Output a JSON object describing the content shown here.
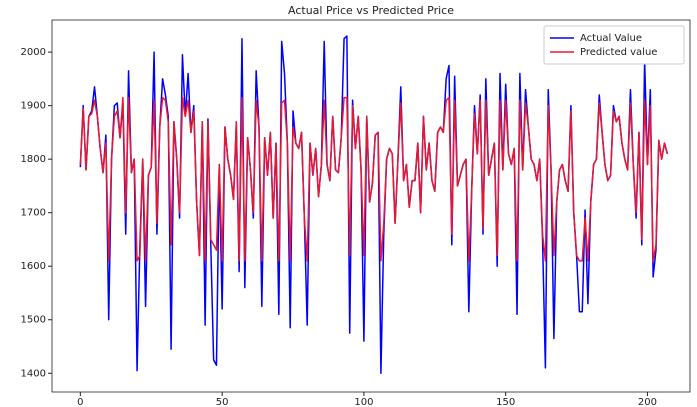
{
  "chart_data": {
    "type": "line",
    "title": "Actual Price vs Predicted Price",
    "x": [
      0,
      1,
      2,
      3,
      4,
      5,
      6,
      7,
      8,
      9,
      10,
      11,
      12,
      13,
      14,
      15,
      16,
      17,
      18,
      19,
      20,
      21,
      22,
      23,
      24,
      25,
      26,
      27,
      28,
      29,
      30,
      31,
      32,
      33,
      34,
      35,
      36,
      37,
      38,
      39,
      40,
      41,
      42,
      43,
      44,
      45,
      46,
      47,
      48,
      49,
      50,
      51,
      52,
      53,
      54,
      55,
      56,
      57,
      58,
      59,
      60,
      61,
      62,
      63,
      64,
      65,
      66,
      67,
      68,
      69,
      70,
      71,
      72,
      73,
      74,
      75,
      76,
      77,
      78,
      79,
      80,
      81,
      82,
      83,
      84,
      85,
      86,
      87,
      88,
      89,
      90,
      91,
      92,
      93,
      94,
      95,
      96,
      97,
      98,
      99,
      100,
      101,
      102,
      103,
      104,
      105,
      106,
      107,
      108,
      109,
      110,
      111,
      112,
      113,
      114,
      115,
      116,
      117,
      118,
      119,
      120,
      121,
      122,
      123,
      124,
      125,
      126,
      127,
      128,
      129,
      130,
      131,
      132,
      133,
      134,
      135,
      136,
      137,
      138,
      139,
      140,
      141,
      142,
      143,
      144,
      145,
      146,
      147,
      148,
      149,
      150,
      151,
      152,
      153,
      154,
      155,
      156,
      157,
      158,
      159,
      160,
      161,
      162,
      163,
      164,
      165,
      166,
      167,
      168,
      169,
      170,
      171,
      172,
      173,
      174,
      175,
      176,
      177,
      178,
      179,
      180,
      181,
      182,
      183,
      184,
      185,
      186,
      187,
      188,
      189,
      190,
      191,
      192,
      193,
      194,
      195,
      196,
      197,
      198,
      199,
      200,
      201,
      202,
      203,
      204,
      205,
      206,
      207
    ],
    "series": [
      {
        "name": "Actual Value",
        "color": "#0000ff",
        "values": [
          1785,
          1900,
          1780,
          1880,
          1890,
          1935,
          1880,
          1820,
          1775,
          1845,
          1500,
          1800,
          1900,
          1905,
          1840,
          1905,
          1660,
          1965,
          1775,
          1800,
          1405,
          1640,
          1800,
          1525,
          1770,
          1785,
          2000,
          1660,
          1860,
          1950,
          1920,
          1880,
          1445,
          1870,
          1800,
          1690,
          1995,
          1880,
          1960,
          1850,
          1900,
          1720,
          1620,
          1870,
          1490,
          1875,
          1640,
          1425,
          1415,
          1790,
          1520,
          1860,
          1800,
          1770,
          1725,
          1865,
          1590,
          2025,
          1560,
          1840,
          1780,
          1690,
          1965,
          1860,
          1525,
          1840,
          1770,
          1850,
          1690,
          1830,
          1510,
          2020,
          1960,
          1830,
          1485,
          1890,
          1830,
          1820,
          1850,
          1690,
          1490,
          1830,
          1770,
          1820,
          1730,
          1790,
          2020,
          1790,
          1760,
          1880,
          1780,
          1775,
          1840,
          2025,
          2030,
          1475,
          1910,
          1820,
          1880,
          1780,
          1460,
          1880,
          1720,
          1755,
          1845,
          1850,
          1400,
          1660,
          1800,
          1820,
          1810,
          1680,
          1800,
          1935,
          1760,
          1790,
          1710,
          1760,
          1760,
          1830,
          1700,
          1880,
          1780,
          1830,
          1760,
          1740,
          1850,
          1860,
          1850,
          1950,
          1975,
          1640,
          1955,
          1750,
          1770,
          1790,
          1800,
          1515,
          1740,
          1900,
          1810,
          1920,
          1660,
          1950,
          1770,
          1800,
          1830,
          1600,
          1960,
          1780,
          1940,
          1810,
          1790,
          1820,
          1510,
          1960,
          1780,
          1930,
          1860,
          1800,
          1790,
          1760,
          1800,
          1650,
          1410,
          1930,
          1780,
          1465,
          1720,
          1780,
          1790,
          1760,
          1740,
          1900,
          1700,
          1620,
          1515,
          1515,
          1705,
          1530,
          1720,
          1790,
          1800,
          1920,
          1850,
          1790,
          1760,
          1770,
          1900,
          1870,
          1880,
          1830,
          1800,
          1780,
          1930,
          1790,
          1690,
          1850,
          1640,
          1985,
          1790,
          1930,
          1580,
          1630,
          1835,
          1800,
          1830,
          1810
        ]
      },
      {
        "name": "Predicted value",
        "color": "#e8182f",
        "values": [
          1790,
          1895,
          1780,
          1880,
          1885,
          1910,
          1880,
          1820,
          1775,
          1830,
          1610,
          1800,
          1880,
          1890,
          1840,
          1915,
          1700,
          1915,
          1775,
          1800,
          1610,
          1620,
          1800,
          1610,
          1770,
          1785,
          1910,
          1680,
          1860,
          1915,
          1910,
          1870,
          1640,
          1870,
          1800,
          1700,
          1915,
          1880,
          1910,
          1850,
          1890,
          1720,
          1620,
          1870,
          1610,
          1870,
          1650,
          1640,
          1630,
          1790,
          1610,
          1860,
          1800,
          1770,
          1725,
          1870,
          1610,
          1915,
          1610,
          1840,
          1780,
          1700,
          1910,
          1860,
          1610,
          1840,
          1770,
          1850,
          1690,
          1830,
          1610,
          1905,
          1910,
          1830,
          1610,
          1860,
          1830,
          1820,
          1850,
          1690,
          1610,
          1830,
          1770,
          1820,
          1730,
          1790,
          1910,
          1790,
          1760,
          1880,
          1780,
          1775,
          1840,
          1915,
          1915,
          1620,
          1900,
          1820,
          1880,
          1780,
          1620,
          1880,
          1720,
          1755,
          1845,
          1850,
          1610,
          1680,
          1800,
          1820,
          1810,
          1680,
          1800,
          1905,
          1760,
          1790,
          1710,
          1760,
          1760,
          1830,
          1700,
          1880,
          1780,
          1830,
          1760,
          1740,
          1850,
          1860,
          1850,
          1910,
          1915,
          1660,
          1910,
          1750,
          1770,
          1790,
          1800,
          1610,
          1740,
          1885,
          1810,
          1910,
          1670,
          1910,
          1770,
          1800,
          1830,
          1620,
          1910,
          1780,
          1910,
          1810,
          1790,
          1820,
          1610,
          1910,
          1780,
          1905,
          1860,
          1800,
          1790,
          1760,
          1800,
          1660,
          1610,
          1900,
          1780,
          1620,
          1720,
          1780,
          1790,
          1760,
          1740,
          1890,
          1700,
          1620,
          1610,
          1610,
          1690,
          1610,
          1720,
          1790,
          1800,
          1905,
          1850,
          1790,
          1760,
          1770,
          1890,
          1870,
          1880,
          1830,
          1800,
          1780,
          1905,
          1790,
          1700,
          1850,
          1650,
          1910,
          1790,
          1900,
          1610,
          1640,
          1835,
          1800,
          1830,
          1810
        ]
      }
    ],
    "xlim": [
      -10,
      215
    ],
    "ylim": [
      1365,
      2060
    ],
    "xticks": [
      0,
      50,
      100,
      150,
      200
    ],
    "yticks": [
      1400,
      1500,
      1600,
      1700,
      1800,
      1900,
      2000
    ],
    "legend": "upper right"
  }
}
